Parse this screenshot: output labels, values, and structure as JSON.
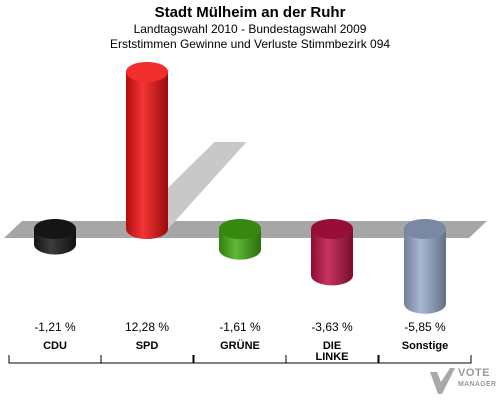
{
  "header": {
    "title": "Stadt Mülheim an der Ruhr",
    "subtitle1": "Landtagswahl 2010 - Bundestagswahl 2009",
    "subtitle2": "Erststimmen Gewinne und Verluste Stimmbezirk 094"
  },
  "chart_data": {
    "type": "bar",
    "title": "Stadt Mülheim an der Ruhr",
    "subtitle": "Landtagswahl 2010 - Bundestagswahl 2009 / Erststimmen Gewinne und Verluste Stimmbezirk 094",
    "categories": [
      "CDU",
      "SPD",
      "GRÜNE",
      "DIE LINKE",
      "Sonstige"
    ],
    "category_lines": [
      [
        "CDU"
      ],
      [
        "SPD"
      ],
      [
        "GRÜNE"
      ],
      [
        "DIE",
        "LINKE"
      ],
      [
        "Sonstige"
      ]
    ],
    "values": [
      -1.21,
      12.28,
      -1.61,
      -3.63,
      -5.85
    ],
    "value_labels": [
      "-1,21 %",
      "12,28 %",
      "-1,61 %",
      "-3,63 %",
      "-5,85 %"
    ],
    "colors": [
      "#1a1a1a",
      "#ee1111",
      "#44aa11",
      "#bb1144",
      "#99aacc"
    ],
    "grid": false,
    "legend": "none"
  },
  "logo": {
    "line1": "VOTE",
    "line2": "MANAGER"
  }
}
